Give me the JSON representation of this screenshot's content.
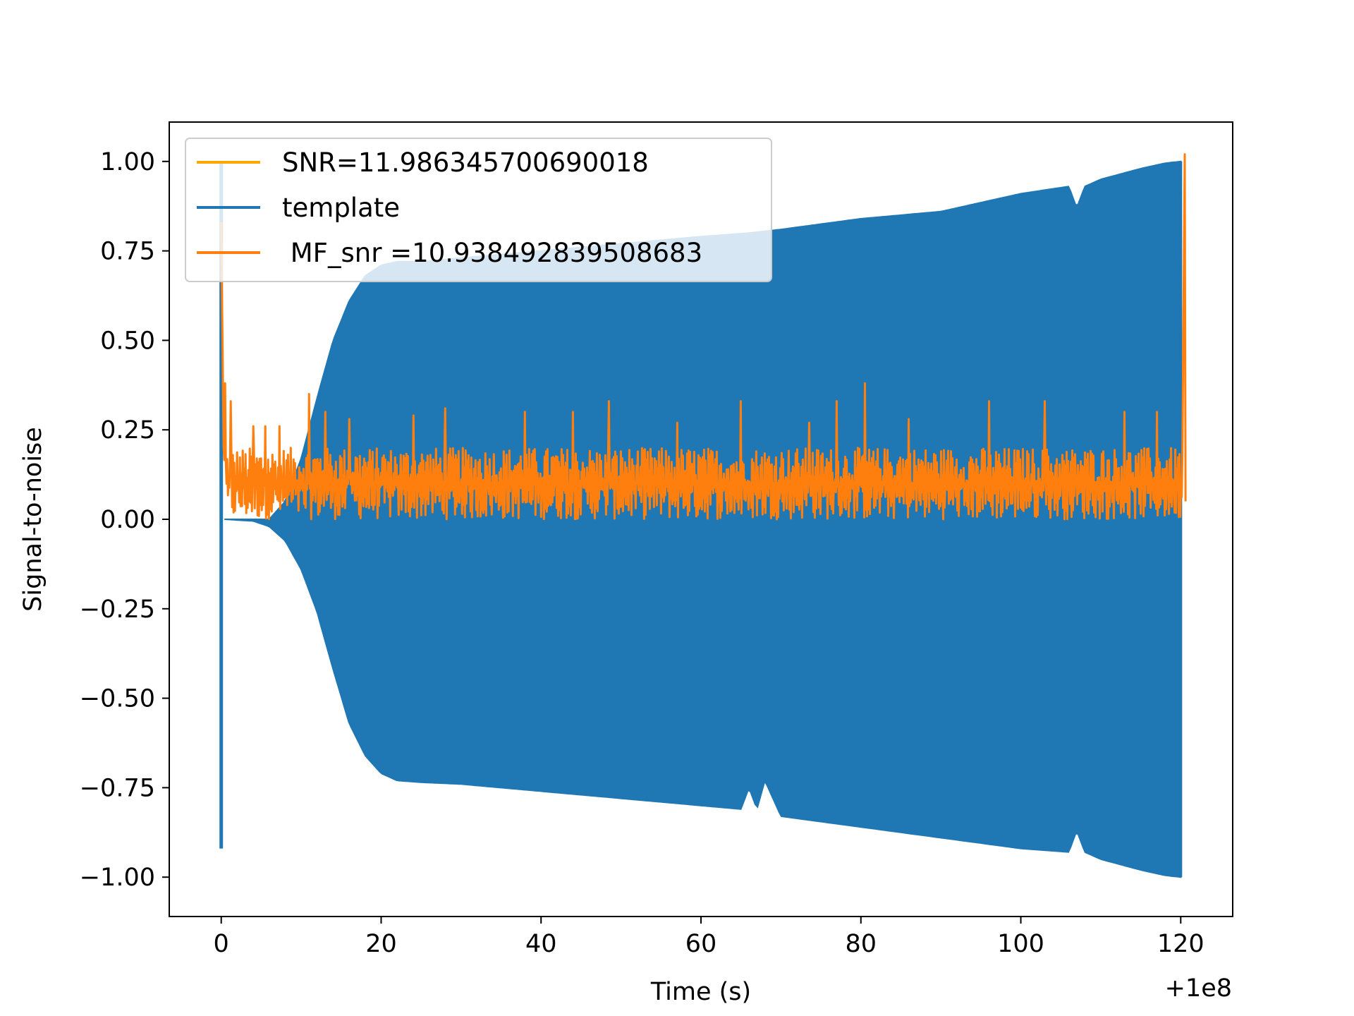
{
  "chart_data": {
    "type": "line",
    "xlabel": "Time (s)",
    "ylabel": "Signal-to-noise",
    "x_offset_label": "+1e8",
    "xlim": [
      -6.5,
      126.5
    ],
    "ylim": [
      -1.11,
      1.11
    ],
    "xticks": [
      0,
      20,
      40,
      60,
      80,
      100,
      120
    ],
    "xtick_labels": [
      "0",
      "20",
      "40",
      "60",
      "80",
      "100",
      "120"
    ],
    "yticks": [
      1.0,
      0.75,
      0.5,
      0.25,
      0.0,
      -0.25,
      -0.5,
      -0.75,
      -1.0
    ],
    "ytick_labels": [
      "1.00",
      "0.75",
      "0.50",
      "0.25",
      "0.00",
      "−0.25",
      "−0.50",
      "−0.75",
      "−1.00"
    ],
    "grid": false,
    "legend_position": "top-left",
    "series": [
      {
        "name": "SNR=11.986345700690018",
        "color": "#ffa500",
        "values": []
      },
      {
        "name": "template",
        "color": "#1f77b4",
        "kind": "oscillating-envelope",
        "spike": {
          "x": 0,
          "y_max": 1.0,
          "y_min": -0.92
        },
        "upper_envelope": {
          "x": [
            0.4,
            6,
            8,
            10,
            12,
            14,
            16,
            18,
            20,
            22,
            25,
            30,
            40,
            50,
            60,
            66,
            70,
            80,
            90,
            100,
            106,
            107,
            108,
            110,
            115,
            118,
            120
          ],
          "y": [
            0.0,
            0.0,
            0.05,
            0.17,
            0.34,
            0.5,
            0.61,
            0.68,
            0.71,
            0.72,
            0.72,
            0.73,
            0.75,
            0.77,
            0.79,
            0.8,
            0.81,
            0.84,
            0.86,
            0.91,
            0.93,
            0.87,
            0.93,
            0.95,
            0.98,
            0.995,
            1.0
          ]
        },
        "lower_envelope": {
          "x": [
            0.4,
            4,
            6,
            8,
            10,
            12,
            14,
            16,
            18,
            20,
            22,
            25,
            30,
            40,
            50,
            60,
            65,
            66,
            67,
            68,
            70,
            80,
            90,
            100,
            106,
            107,
            108,
            110,
            115,
            118,
            120
          ],
          "y": [
            0.0,
            -0.005,
            -0.02,
            -0.06,
            -0.14,
            -0.26,
            -0.42,
            -0.57,
            -0.66,
            -0.71,
            -0.73,
            -0.735,
            -0.74,
            -0.76,
            -0.78,
            -0.8,
            -0.81,
            -0.75,
            -0.81,
            -0.73,
            -0.83,
            -0.86,
            -0.89,
            -0.92,
            -0.93,
            -0.87,
            -0.93,
            -0.95,
            -0.98,
            -0.995,
            -1.0
          ]
        }
      },
      {
        "name": " MF_snr =10.938492839508683",
        "color": "#ff7f0e",
        "kind": "noise-band",
        "initial_peak": {
          "x": 0,
          "y": 0.83
        },
        "final_peak": {
          "x": 120.5,
          "y": 1.02
        },
        "band_low": 0.0,
        "band_mean": 0.1,
        "band_high": 0.2,
        "peaks": [
          {
            "x": 0.5,
            "y": 0.38
          },
          {
            "x": 1.2,
            "y": 0.33
          },
          {
            "x": 4,
            "y": 0.26
          },
          {
            "x": 5.5,
            "y": 0.26
          },
          {
            "x": 7.3,
            "y": 0.26
          },
          {
            "x": 11,
            "y": 0.35
          },
          {
            "x": 13,
            "y": 0.3
          },
          {
            "x": 16,
            "y": 0.28
          },
          {
            "x": 24,
            "y": 0.29
          },
          {
            "x": 28,
            "y": 0.31
          },
          {
            "x": 38,
            "y": 0.3
          },
          {
            "x": 44,
            "y": 0.3
          },
          {
            "x": 48.5,
            "y": 0.33
          },
          {
            "x": 57,
            "y": 0.27
          },
          {
            "x": 65,
            "y": 0.33
          },
          {
            "x": 73.5,
            "y": 0.27
          },
          {
            "x": 77,
            "y": 0.33
          },
          {
            "x": 80.5,
            "y": 0.38
          },
          {
            "x": 86,
            "y": 0.28
          },
          {
            "x": 96,
            "y": 0.33
          },
          {
            "x": 103,
            "y": 0.33
          },
          {
            "x": 113,
            "y": 0.3
          },
          {
            "x": 117,
            "y": 0.3
          }
        ]
      }
    ]
  }
}
